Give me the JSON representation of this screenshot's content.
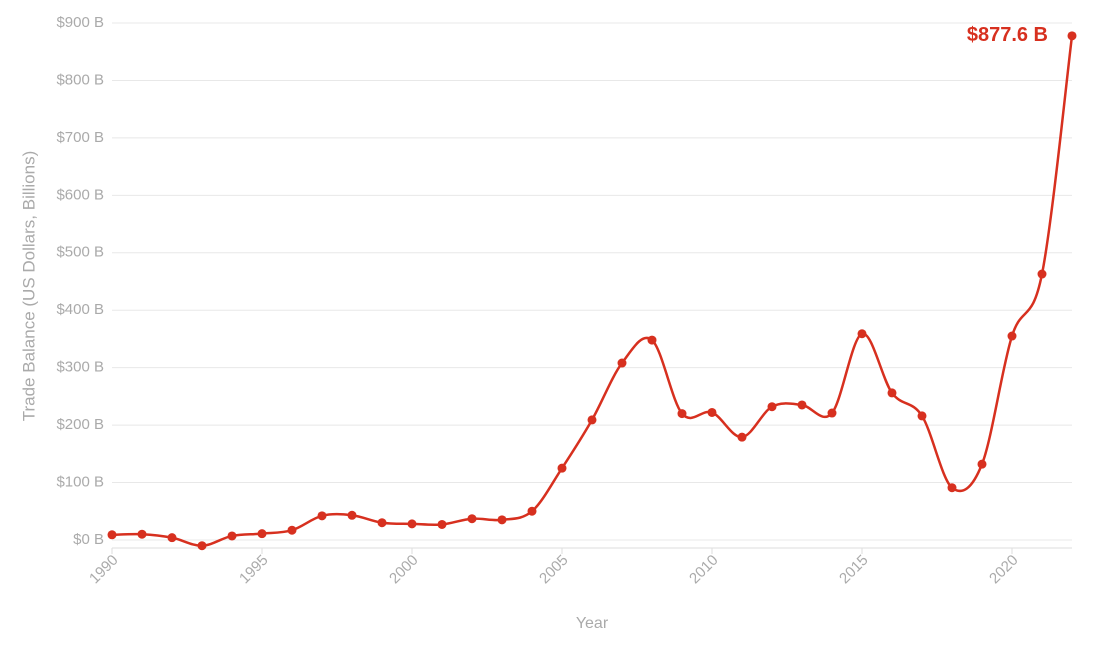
{
  "chart_data": {
    "type": "line",
    "x_label": "Year",
    "y_label": "Trade Balance (US Dollars, Billions)",
    "x": [
      1990,
      1991,
      1992,
      1993,
      1994,
      1995,
      1996,
      1997,
      1998,
      1999,
      2000,
      2001,
      2002,
      2003,
      2004,
      2005,
      2006,
      2007,
      2008,
      2009,
      2010,
      2011,
      2012,
      2013,
      2014,
      2015,
      2016,
      2017,
      2018,
      2019,
      2020,
      2021,
      2022
    ],
    "series": [
      {
        "name": "Trade Balance",
        "color": "#d7301f",
        "values": [
          9,
          10,
          4,
          -10,
          7,
          11,
          17,
          42,
          43,
          30,
          28,
          27,
          37,
          35,
          50,
          125,
          209,
          308,
          348,
          220,
          222,
          179,
          232,
          235,
          221,
          359,
          256,
          216,
          91,
          132,
          355,
          463,
          877.6
        ],
        "value_labels": [
          null,
          null,
          null,
          null,
          null,
          null,
          null,
          null,
          null,
          null,
          null,
          null,
          null,
          null,
          null,
          null,
          null,
          null,
          null,
          null,
          null,
          null,
          null,
          null,
          null,
          null,
          null,
          null,
          null,
          null,
          null,
          null,
          "$877.6 B"
        ]
      }
    ],
    "xlim": [
      1990,
      2022
    ],
    "xticks": [
      1990,
      1995,
      2000,
      2005,
      2010,
      2015,
      2020
    ],
    "ylim": [
      -14,
      900
    ],
    "yticks": [
      {
        "value": 0,
        "label": "$0 B"
      },
      {
        "value": 100,
        "label": "$100 B"
      },
      {
        "value": 200,
        "label": "$200 B"
      },
      {
        "value": 300,
        "label": "$300 B"
      },
      {
        "value": 400,
        "label": "$400 B"
      },
      {
        "value": 500,
        "label": "$500 B"
      },
      {
        "value": 600,
        "label": "$600 B"
      },
      {
        "value": 700,
        "label": "$700 B"
      },
      {
        "value": 800,
        "label": "$800 B"
      },
      {
        "value": 900,
        "label": "$900 B"
      }
    ],
    "grid": true
  }
}
